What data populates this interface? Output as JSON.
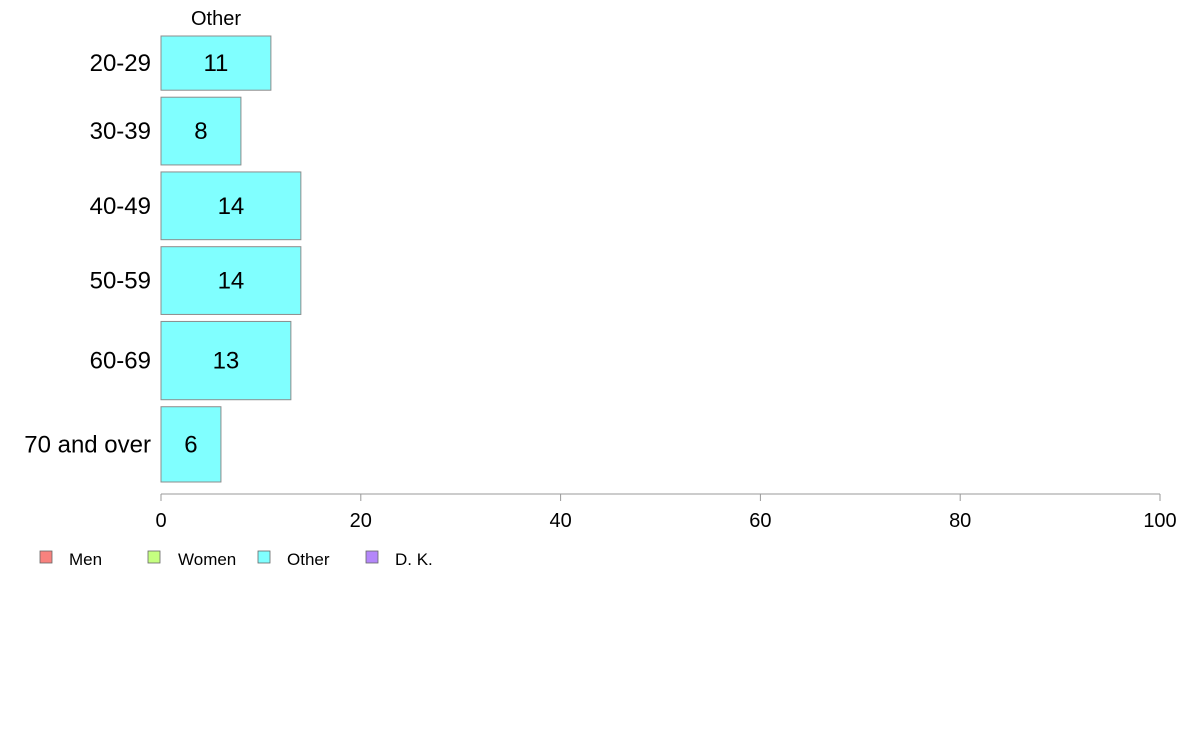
{
  "chart_data": {
    "type": "bar",
    "orientation": "horizontal",
    "panel_title": "Other",
    "categories": [
      "20-29",
      "30-39",
      "40-49",
      "50-59",
      "60-69",
      "70 and over"
    ],
    "series": [
      {
        "name": "Other",
        "values": [
          11,
          8,
          14,
          14,
          13,
          6
        ],
        "labels": [
          "11",
          "8",
          "14",
          "14",
          "13",
          "6"
        ],
        "color": "#80FFFF"
      }
    ],
    "bar_weights": [
      0.72,
      0.9,
      0.9,
      0.9,
      1.04,
      1.0
    ],
    "xlim": [
      0,
      100
    ],
    "xticks": [
      0,
      20,
      40,
      60,
      80,
      100
    ],
    "xtick_labels": [
      "0",
      "20",
      "40",
      "60",
      "80",
      "100"
    ],
    "grid": false,
    "legend": {
      "placement": "bottom-left",
      "entries": [
        {
          "label": "Men",
          "color": "#F8827E"
        },
        {
          "label": "Women",
          "color": "#C5FF80"
        },
        {
          "label": "Other",
          "color": "#80FFFF"
        },
        {
          "label": "D. K.",
          "color": "#B487FA"
        }
      ]
    },
    "bar_border_color": "#8C8C8C",
    "axis_color": "#999999"
  }
}
